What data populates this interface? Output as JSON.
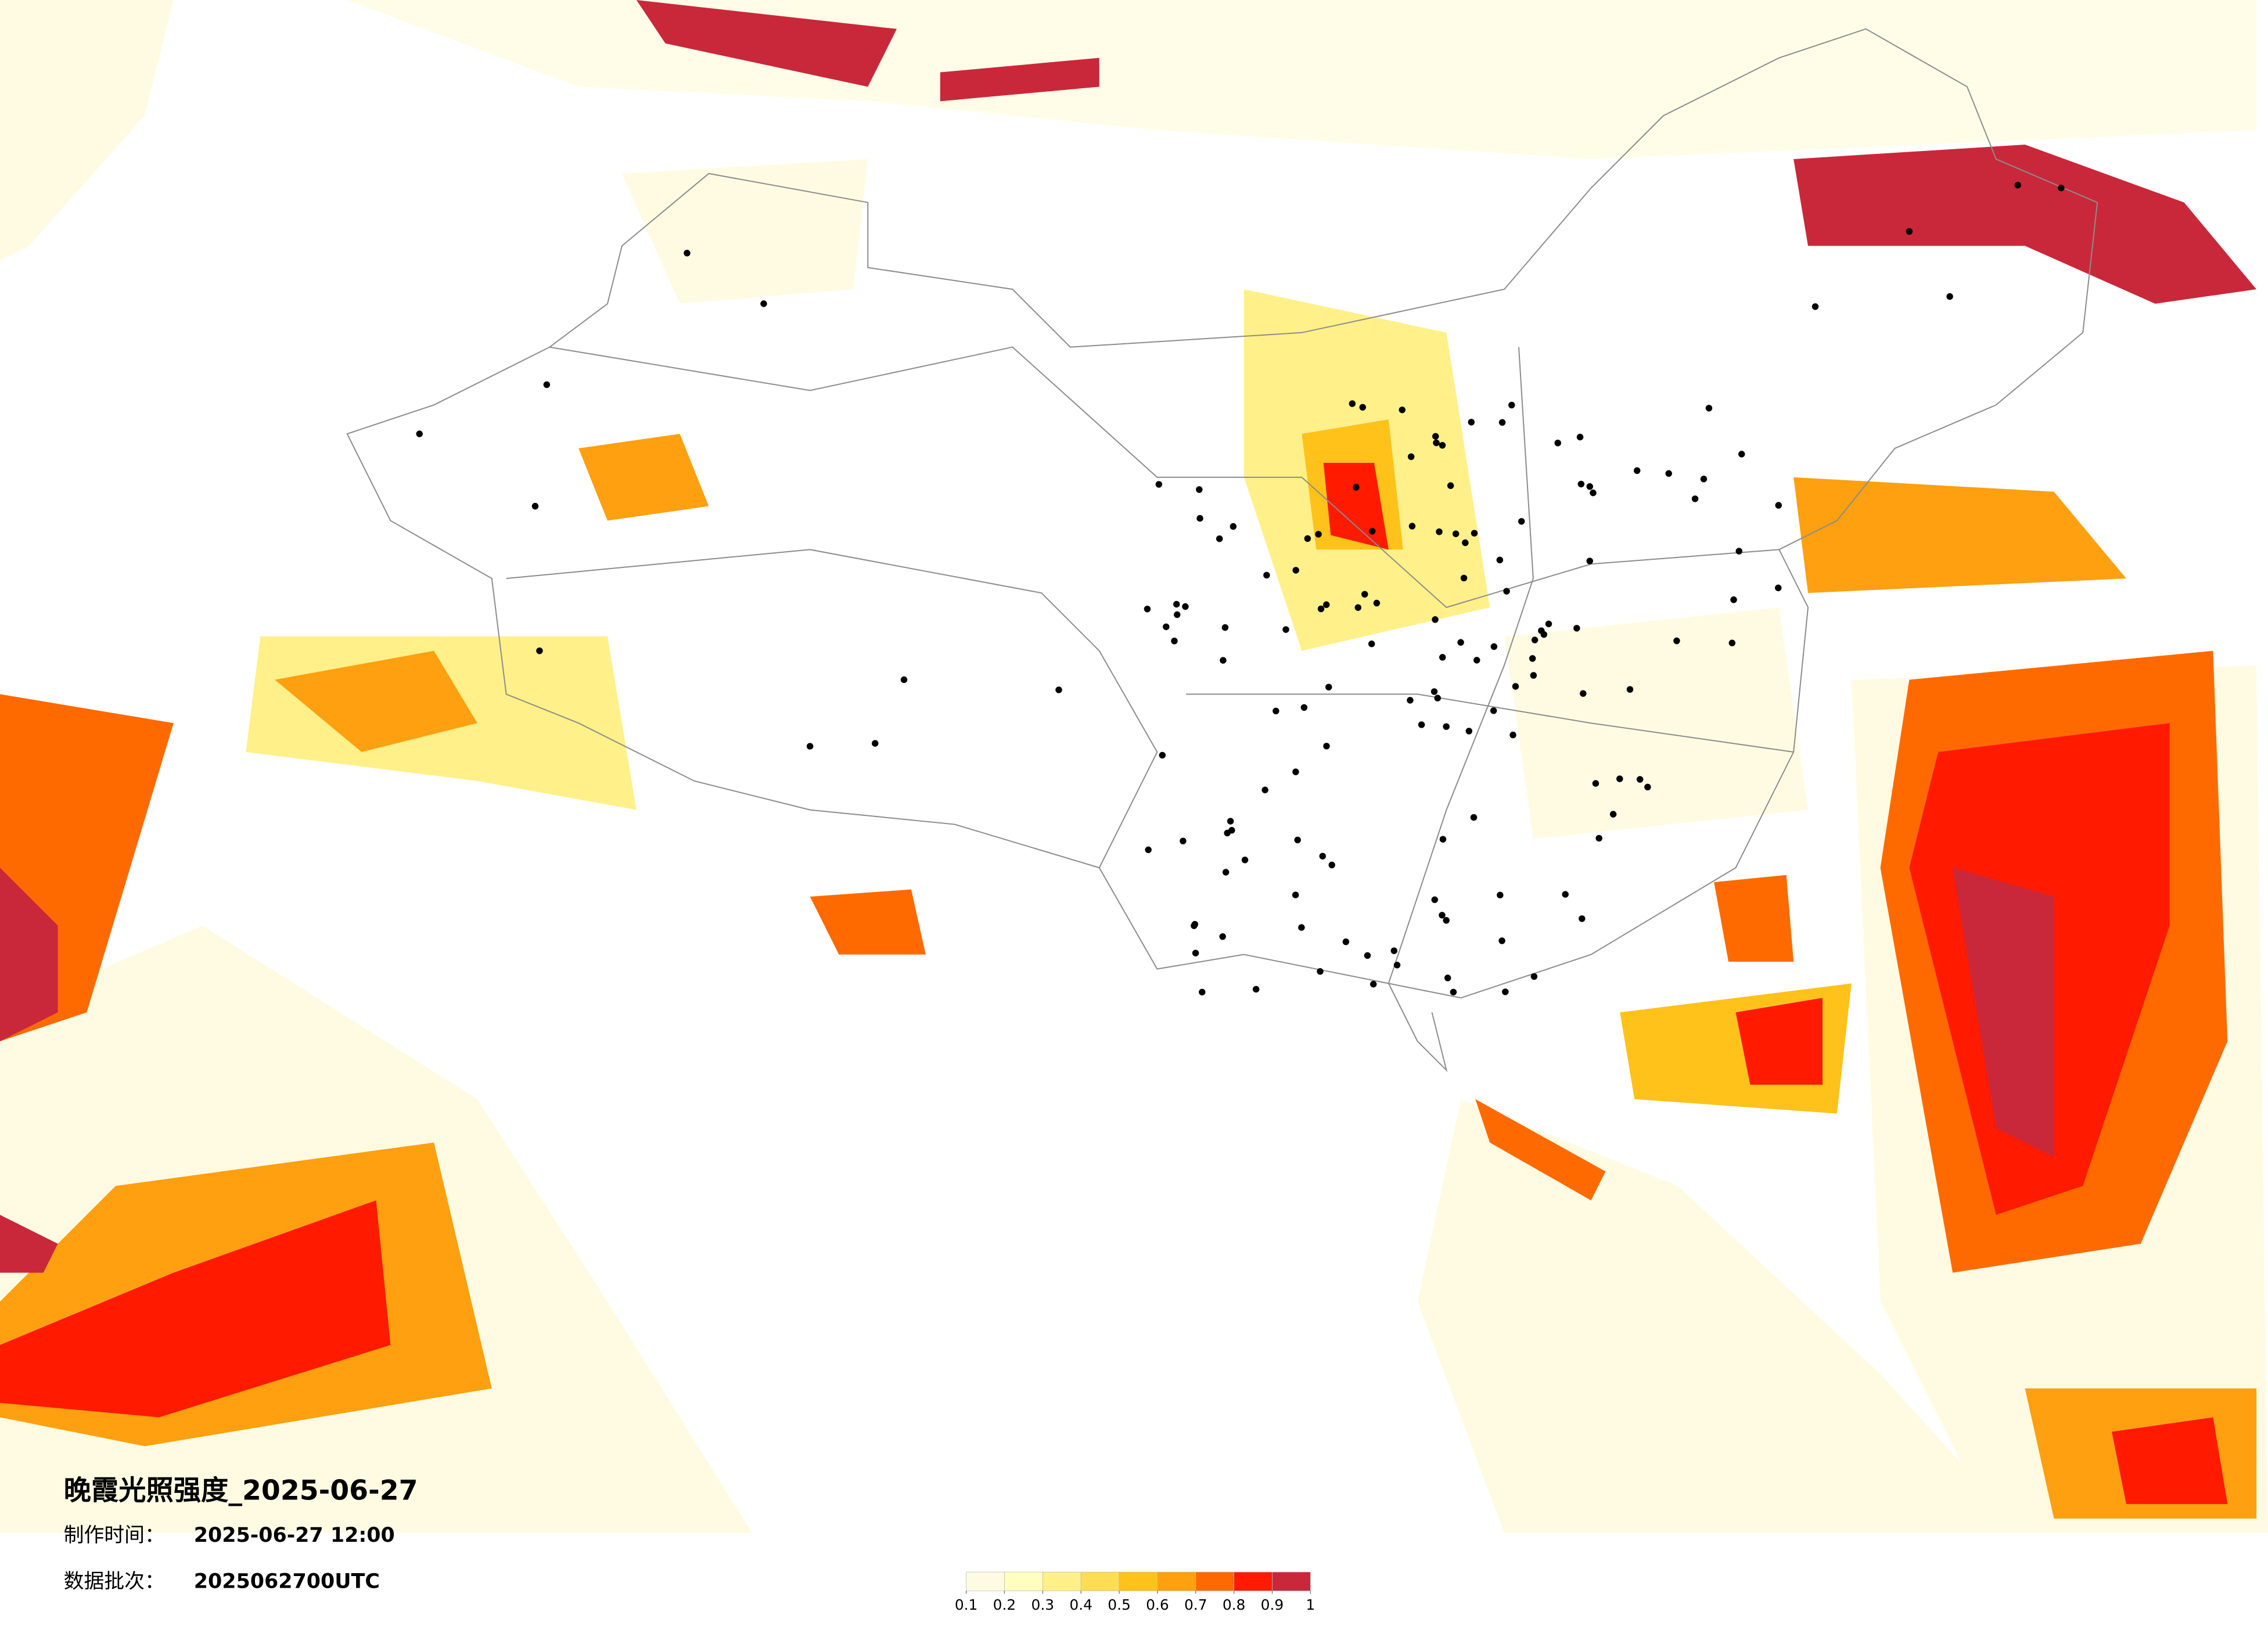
{
  "title": "晚霞光照强度_2025-06-27",
  "info": [
    {
      "label": "制作时间：",
      "value": "2025-06-27 12:00"
    },
    {
      "label": "数据批次：",
      "value": "2025062700UTC"
    }
  ],
  "colorbar": {
    "colors": [
      "#fffbe3",
      "#ffffbf",
      "#fff08a",
      "#ffdc55",
      "#ffc21a",
      "#ffa010",
      "#ff6a00",
      "#ff1a00",
      "#c8283a"
    ],
    "ticks": [
      0.1,
      0.2,
      0.3,
      0.4,
      0.5,
      0.6,
      0.7,
      0.8,
      0.9,
      1
    ]
  }
}
